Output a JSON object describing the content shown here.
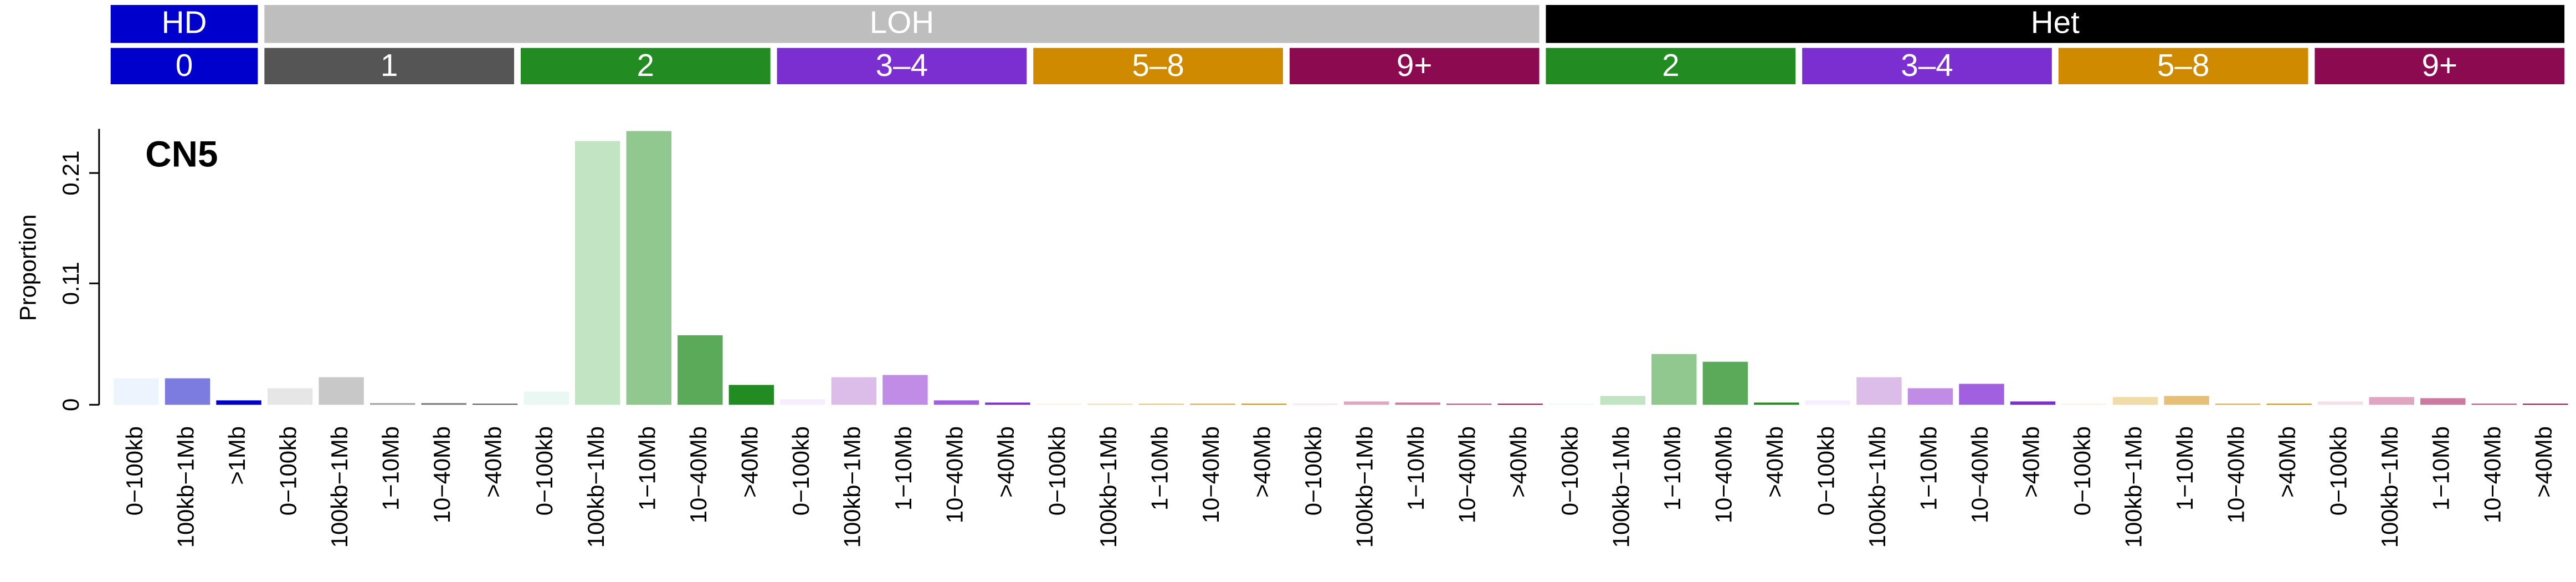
{
  "chart_data": {
    "type": "bar",
    "title": "CN5",
    "y_label": "Proportion",
    "ylim": [
      0,
      0.25
    ],
    "yticks": [
      0,
      0.11,
      0.21
    ],
    "groups": [
      {
        "name": "HD",
        "color": "#0000cc",
        "subgroups": [
          {
            "name": "0",
            "color": "#0000cc",
            "categories": [
              "0−100kb",
              "100kb−1Mb",
              ">1Mb"
            ],
            "values": [
              0.024,
              0.024,
              0.004
            ],
            "colors": [
              "#eef4fe",
              "#7b7be0",
              "#0000cc"
            ]
          }
        ]
      },
      {
        "name": "LOH",
        "color": "#bebebe",
        "subgroups": [
          {
            "name": "1",
            "color": "#555555",
            "categories": [
              "0−100kb",
              "100kb−1Mb",
              "1−10Mb",
              "10−40Mb",
              ">40Mb"
            ],
            "values": [
              0.015,
              0.025,
              0.0015,
              0.0015,
              0.001
            ],
            "colors": [
              "#e6e6e6",
              "#c8c8c8",
              "#a0a0a0",
              "#787878",
              "#555555"
            ]
          },
          {
            "name": "2",
            "color": "#228b22",
            "categories": [
              "0−100kb",
              "100kb−1Mb",
              "1−10Mb",
              "10−40Mb",
              ">40Mb"
            ],
            "values": [
              0.012,
              0.239,
              0.248,
              0.063,
              0.018
            ],
            "colors": [
              "#eaf8f4",
              "#c2e4c2",
              "#90c890",
              "#5aaa5a",
              "#228b22"
            ]
          },
          {
            "name": "3–4",
            "color": "#7b2fd0",
            "categories": [
              "0−100kb",
              "100kb−1Mb",
              "1−10Mb",
              "10−40Mb",
              ">40Mb"
            ],
            "values": [
              0.005,
              0.025,
              0.027,
              0.004,
              0.002
            ],
            "colors": [
              "#f6eefc",
              "#dcbde9",
              "#c08ce6",
              "#a060e0",
              "#7b2fd0"
            ]
          },
          {
            "name": "5–8",
            "color": "#d08a00",
            "categories": [
              "0−100kb",
              "100kb−1Mb",
              "1−10Mb",
              "10−40Mb",
              ">40Mb"
            ],
            "values": [
              0.001,
              0.001,
              0.001,
              0.001,
              0.001
            ],
            "colors": [
              "#faf0da",
              "#f0dca8",
              "#e6c078",
              "#dca240",
              "#d08a00"
            ]
          },
          {
            "name": "9+",
            "color": "#8b0a50",
            "categories": [
              "0−100kb",
              "100kb−1Mb",
              "1−10Mb",
              "10−40Mb",
              ">40Mb"
            ],
            "values": [
              0.001,
              0.003,
              0.002,
              0.001,
              0.001
            ],
            "colors": [
              "#f5e0ea",
              "#e0a6c0",
              "#cc7aa0",
              "#b04a7e",
              "#8b0a50"
            ]
          }
        ]
      },
      {
        "name": "Het",
        "color": "#000000",
        "subgroups": [
          {
            "name": "2",
            "color": "#228b22",
            "categories": [
              "0−100kb",
              "100kb−1Mb",
              "1−10Mb",
              "10−40Mb",
              ">40Mb"
            ],
            "values": [
              0.001,
              0.008,
              0.046,
              0.039,
              0.002
            ],
            "colors": [
              "#eaf8f4",
              "#c2e4c2",
              "#90c890",
              "#5aaa5a",
              "#228b22"
            ]
          },
          {
            "name": "3–4",
            "color": "#7b2fd0",
            "categories": [
              "0−100kb",
              "100kb−1Mb",
              "1−10Mb",
              "10−40Mb",
              ">40Mb"
            ],
            "values": [
              0.004,
              0.025,
              0.015,
              0.019,
              0.003
            ],
            "colors": [
              "#f6eefc",
              "#dcbde9",
              "#c08ce6",
              "#a060e0",
              "#7b2fd0"
            ]
          },
          {
            "name": "5–8",
            "color": "#d08a00",
            "categories": [
              "0−100kb",
              "100kb−1Mb",
              "1−10Mb",
              "10−40Mb",
              ">40Mb"
            ],
            "values": [
              0.001,
              0.007,
              0.008,
              0.001,
              0.001
            ],
            "colors": [
              "#faf0da",
              "#f0dca8",
              "#e6c078",
              "#dca240",
              "#d08a00"
            ]
          },
          {
            "name": "9+",
            "color": "#8b0a50",
            "categories": [
              "0−100kb",
              "100kb−1Mb",
              "1−10Mb",
              "10−40Mb",
              ">40Mb"
            ],
            "values": [
              0.003,
              0.007,
              0.006,
              0.001,
              0.001
            ],
            "colors": [
              "#f5e0ea",
              "#e0a6c0",
              "#cc7aa0",
              "#b04a7e",
              "#8b0a50"
            ]
          }
        ]
      }
    ]
  }
}
